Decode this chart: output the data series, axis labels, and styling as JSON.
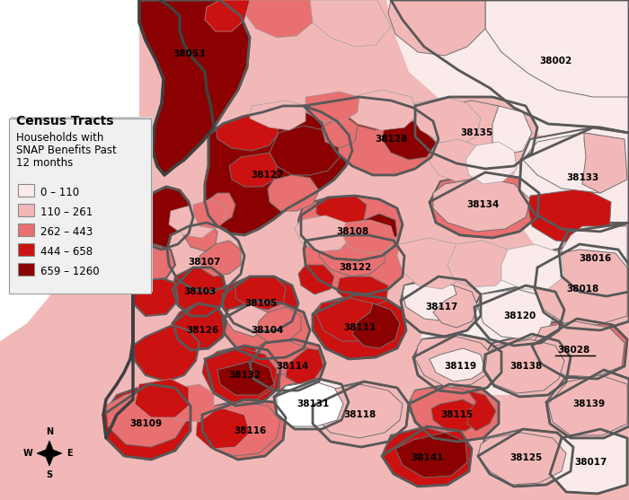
{
  "legend_title": "Census Tracts",
  "legend_subtitle": "Households with\nSNAP Benefits Past\n12 months",
  "legend_ranges": [
    "0 – 110",
    "110 – 261",
    "262 – 443",
    "444 – 658",
    "659 – 1260"
  ],
  "legend_colors": [
    "#faeaea",
    "#f2b8b8",
    "#e87070",
    "#cc1111",
    "#8b0000"
  ],
  "background_color": "#ffffff",
  "border_thin": "#a0a0a0",
  "border_thick": "#606060",
  "figsize": [
    7.0,
    5.57
  ],
  "dpi": 100
}
